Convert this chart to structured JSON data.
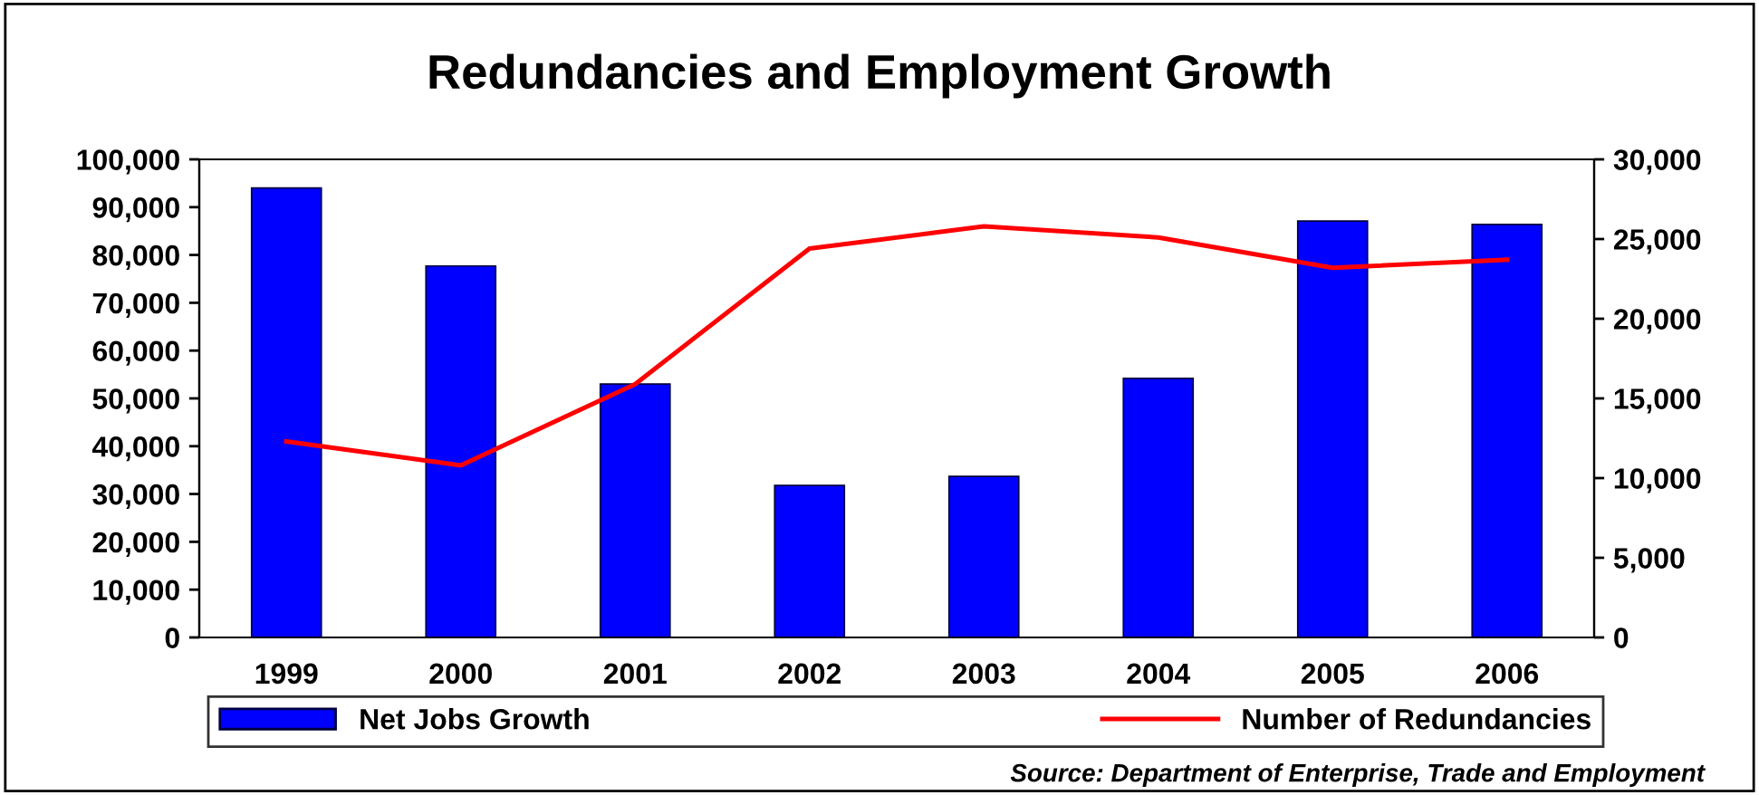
{
  "chart_data": {
    "type": "bar",
    "title": "Redundancies and Employment Growth",
    "categories": [
      "1999",
      "2000",
      "2001",
      "2002",
      "2003",
      "2004",
      "2005",
      "2006"
    ],
    "series": [
      {
        "name": "Net Jobs Growth",
        "color": "#0000ff",
        "values": [
          94000,
          77700,
          53000,
          31800,
          33700,
          54200,
          87100,
          86400
        ]
      },
      {
        "name": "Number of Redundancies",
        "type": "line",
        "axis": "y2",
        "color": "#ff0000",
        "values": [
          12300,
          10800,
          15900,
          24400,
          25800,
          25100,
          23200,
          23700
        ]
      }
    ],
    "ylim": [
      0,
      100000
    ],
    "yticks": [
      {
        "value": 0,
        "label": "0"
      },
      {
        "value": 10000,
        "label": "10,000"
      },
      {
        "value": 20000,
        "label": "20,000"
      },
      {
        "value": 30000,
        "label": "30,000"
      },
      {
        "value": 40000,
        "label": "40,000"
      },
      {
        "value": 50000,
        "label": "50,000"
      },
      {
        "value": 60000,
        "label": "60,000"
      },
      {
        "value": 70000,
        "label": "70,000"
      },
      {
        "value": 80000,
        "label": "80,000"
      },
      {
        "value": 90000,
        "label": "90,000"
      },
      {
        "value": 100000,
        "label": "100,000"
      }
    ],
    "y2lim": [
      0,
      30000
    ],
    "y2ticks": [
      {
        "value": 0,
        "label": "0"
      },
      {
        "value": 5000,
        "label": "5,000"
      },
      {
        "value": 10000,
        "label": "10,000"
      },
      {
        "value": 15000,
        "label": "15,000"
      },
      {
        "value": 20000,
        "label": "20,000"
      },
      {
        "value": 25000,
        "label": "25,000"
      },
      {
        "value": 30000,
        "label": "30,000"
      }
    ],
    "grid": false,
    "legend": "bottom",
    "marker": "none",
    "line_style": "solid",
    "annotations": [
      "Source: Department of Enterprise, Trade and Employment"
    ]
  }
}
